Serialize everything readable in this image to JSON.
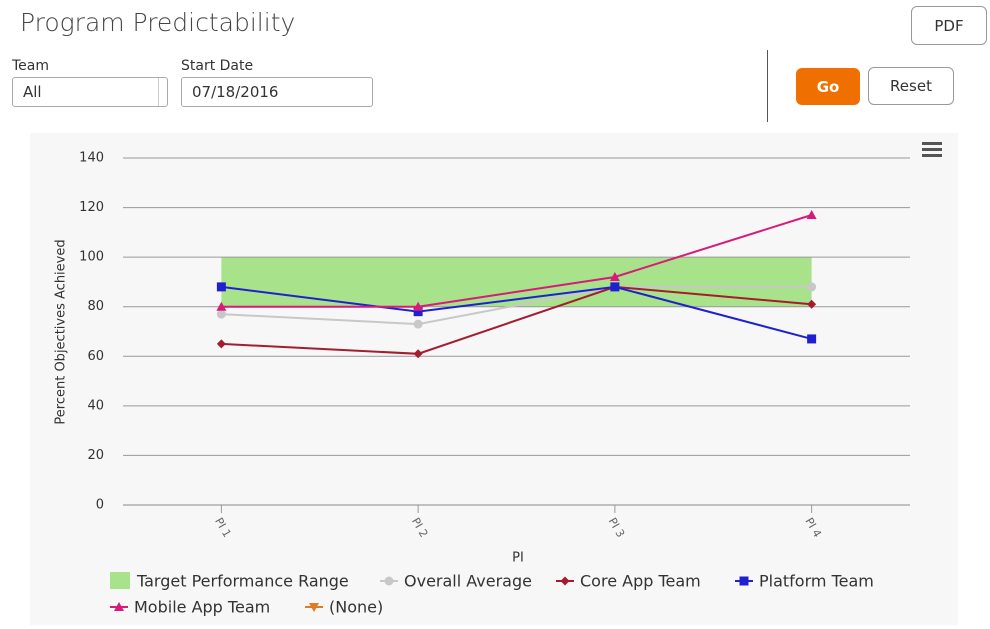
{
  "header": {
    "title": "Program Predictability",
    "pdf_button": "PDF"
  },
  "filters": {
    "team_label": "Team",
    "team_value": "All",
    "start_date_label": "Start Date",
    "start_date_value": "07/18/2016",
    "go_button": "Go",
    "reset_button": "Reset"
  },
  "chart_data": {
    "type": "line",
    "xlabel": "PI",
    "ylabel": "Percent Objectives Achieved",
    "categories": [
      "PI 1",
      "PI 2",
      "PI 3",
      "PI 4"
    ],
    "ylim": [
      0,
      140
    ],
    "yticks": [
      0,
      20,
      40,
      60,
      80,
      100,
      120,
      140
    ],
    "grid": true,
    "target_range": {
      "name": "Target Performance Range",
      "color": "#a8e28a",
      "low": 80,
      "high": 100
    },
    "series": [
      {
        "name": "Overall Average",
        "color": "#c8c8c8",
        "marker": "circle",
        "values": [
          77,
          73,
          88,
          88
        ]
      },
      {
        "name": "Core App Team",
        "color": "#a51c30",
        "marker": "diamond",
        "values": [
          65,
          61,
          88,
          81
        ]
      },
      {
        "name": "Platform Team",
        "color": "#2020d0",
        "marker": "square",
        "values": [
          88,
          78,
          88,
          67
        ]
      },
      {
        "name": "Mobile App Team",
        "color": "#d81b7a",
        "marker": "triangle",
        "values": [
          80,
          80,
          92,
          117
        ]
      },
      {
        "name": "(None)",
        "color": "#e07b25",
        "marker": "triangle-down",
        "values": [
          null,
          null,
          null,
          null
        ]
      }
    ]
  }
}
